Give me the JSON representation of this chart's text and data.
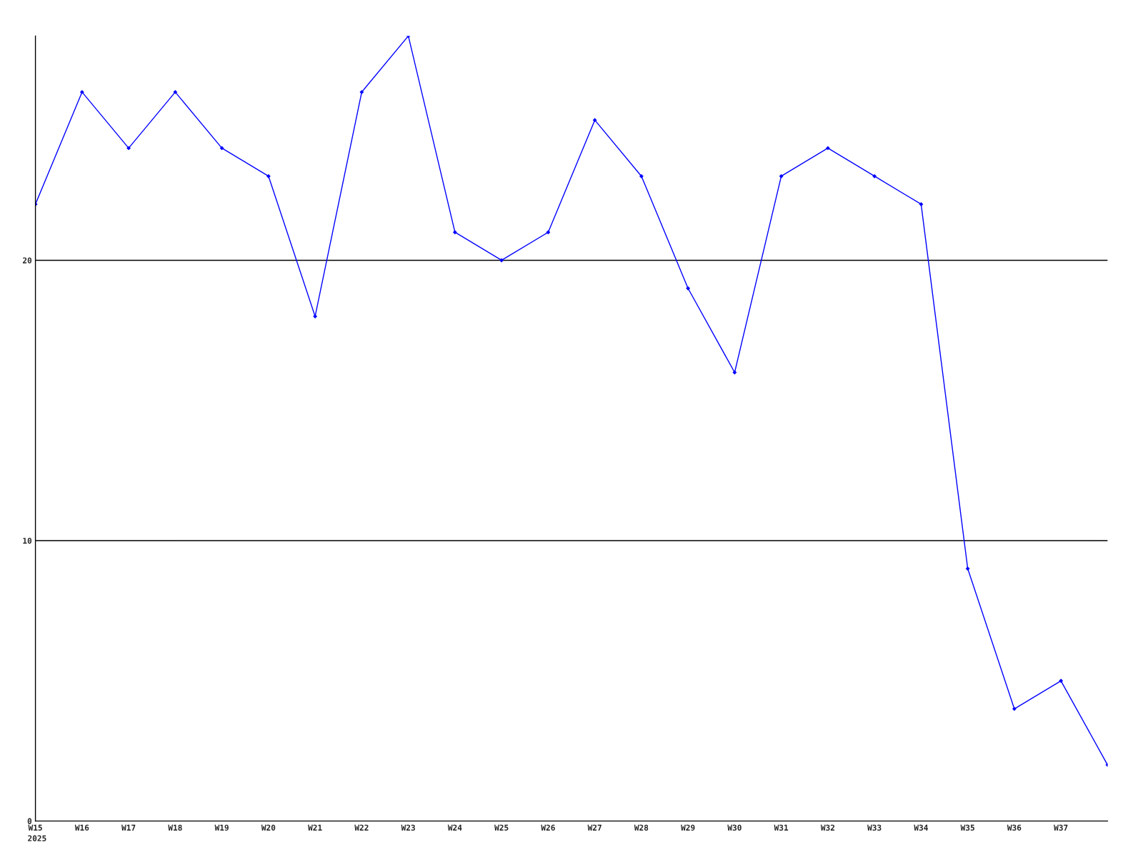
{
  "chart_data": {
    "type": "line",
    "categories": [
      "W15",
      "W16",
      "W17",
      "W18",
      "W19",
      "W20",
      "W21",
      "W22",
      "W23",
      "W24",
      "W25",
      "W26",
      "W27",
      "W28",
      "W29",
      "W30",
      "W31",
      "W32",
      "W33",
      "W34",
      "W35",
      "W36",
      "W37",
      null
    ],
    "series": [
      {
        "color": "#0000ff",
        "values": [
          22,
          26,
          24,
          26,
          24,
          23,
          18,
          26,
          28,
          21,
          20,
          21,
          25,
          23,
          19,
          16,
          23,
          24,
          23,
          22,
          9,
          4,
          5,
          2
        ]
      }
    ],
    "ylim": [
      0,
      28
    ],
    "yticks": [
      0,
      10,
      20
    ],
    "grid": "y",
    "marker": "diamond",
    "line_style": "solid",
    "annotations": [
      "2025"
    ]
  }
}
